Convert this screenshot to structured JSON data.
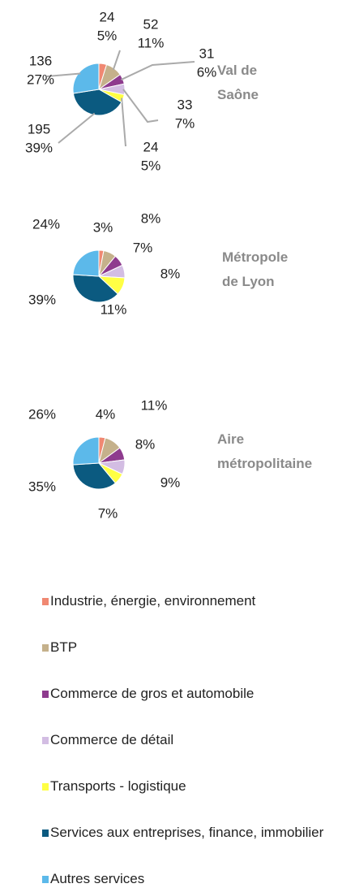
{
  "chart_data": {
    "type": "pie",
    "categories": [
      "Industrie, énergie, environnement",
      "BTP",
      "Commerce de gros et automobile",
      "Commerce de détail",
      "Transports - logistique",
      "Services aux entreprises, finance, immobilier",
      "Autres services"
    ],
    "colors": [
      "#f08872",
      "#c5b18b",
      "#8e3b8e",
      "#d3bde3",
      "#ffff44",
      "#0b5a80",
      "#5cb9ea"
    ],
    "series": [
      {
        "name": "Val de Saône",
        "values": [
          24,
          52,
          31,
          33,
          24,
          195,
          136
        ],
        "percent_labels": [
          "5%",
          "11%",
          "6%",
          "7%",
          "5%",
          "39%",
          "27%"
        ]
      },
      {
        "name": "Métropole de Lyon",
        "values": [
          3,
          8,
          7,
          8,
          11,
          39,
          24
        ],
        "value_labels": [
          "3%",
          "8%",
          "7%",
          "8%",
          "11%",
          "39%",
          "24%"
        ]
      },
      {
        "name": "Aire métropolitaine",
        "values": [
          4,
          11,
          8,
          9,
          7,
          35,
          26
        ],
        "value_labels": [
          "4%",
          "11%",
          "8%",
          "9%",
          "7%",
          "35%",
          "26%"
        ]
      }
    ],
    "legend": "bottom"
  }
}
